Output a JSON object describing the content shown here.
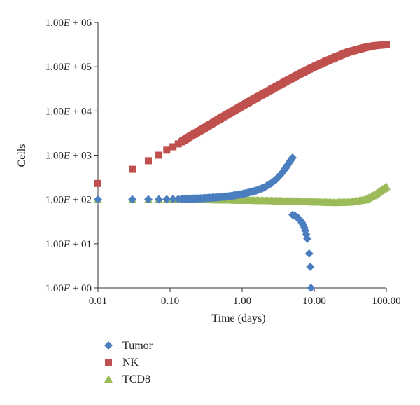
{
  "chart_data": {
    "type": "scatter",
    "title": "",
    "xlabel": "Time (days)",
    "ylabel": "Cells",
    "xscale": "log",
    "yscale": "log",
    "xlim": [
      0.01,
      100
    ],
    "ylim": [
      1,
      1000000
    ],
    "grid": false,
    "legend_position": "bottom-left",
    "x_tick_labels": [
      "0.01",
      "0.10",
      "1.00",
      "10.00",
      "100.00"
    ],
    "y_tick_labels": [
      "1.00E + 00",
      "1.00E + 01",
      "1.00E + 02",
      "1.00E + 03",
      "1.00E + 04",
      "1.00E + 05",
      "1.00E + 06"
    ],
    "series": [
      {
        "name": "Tumor",
        "marker": "diamond",
        "color": "#4a7ebf",
        "points": [
          {
            "x": 0.01,
            "y": 100
          },
          {
            "x": 0.03,
            "y": 100
          },
          {
            "x": 0.05,
            "y": 100
          },
          {
            "x": 0.07,
            "y": 100
          },
          {
            "x": 0.09,
            "y": 101
          },
          {
            "x": 0.11,
            "y": 102
          },
          {
            "x": 0.13,
            "y": 102
          },
          {
            "x": 0.15,
            "y": 103
          },
          {
            "x": 0.2,
            "y": 104
          },
          {
            "x": 0.3,
            "y": 107
          },
          {
            "x": 0.5,
            "y": 113
          },
          {
            "x": 0.7,
            "y": 120
          },
          {
            "x": 1.0,
            "y": 132
          },
          {
            "x": 1.5,
            "y": 155
          },
          {
            "x": 2.0,
            "y": 185
          },
          {
            "x": 2.5,
            "y": 230
          },
          {
            "x": 3.0,
            "y": 290
          },
          {
            "x": 3.5,
            "y": 380
          },
          {
            "x": 4.0,
            "y": 510
          },
          {
            "x": 4.5,
            "y": 680
          },
          {
            "x": 5.0,
            "y": 880
          },
          {
            "x": 5.0,
            "y": 45
          },
          {
            "x": 5.5,
            "y": 42
          },
          {
            "x": 6.0,
            "y": 38
          },
          {
            "x": 6.5,
            "y": 33
          },
          {
            "x": 7.0,
            "y": 27
          },
          {
            "x": 7.5,
            "y": 20
          },
          {
            "x": 8.0,
            "y": 13
          },
          {
            "x": 8.5,
            "y": 6
          },
          {
            "x": 8.8,
            "y": 3
          },
          {
            "x": 9.0,
            "y": 1
          }
        ]
      },
      {
        "name": "NK",
        "marker": "square",
        "color": "#c0504d",
        "points": [
          {
            "x": 0.01,
            "y": 230
          },
          {
            "x": 0.03,
            "y": 480
          },
          {
            "x": 0.05,
            "y": 750
          },
          {
            "x": 0.07,
            "y": 1000
          },
          {
            "x": 0.09,
            "y": 1300
          },
          {
            "x": 0.11,
            "y": 1550
          },
          {
            "x": 0.13,
            "y": 1800
          },
          {
            "x": 0.15,
            "y": 2100
          },
          {
            "x": 0.2,
            "y": 2800
          },
          {
            "x": 0.3,
            "y": 4100
          },
          {
            "x": 0.5,
            "y": 6800
          },
          {
            "x": 0.7,
            "y": 9300
          },
          {
            "x": 1.0,
            "y": 13000
          },
          {
            "x": 1.5,
            "y": 19000
          },
          {
            "x": 2.0,
            "y": 24500
          },
          {
            "x": 3.0,
            "y": 35500
          },
          {
            "x": 5.0,
            "y": 56000
          },
          {
            "x": 7.0,
            "y": 75000
          },
          {
            "x": 10.0,
            "y": 100000
          },
          {
            "x": 15.0,
            "y": 135000
          },
          {
            "x": 20.0,
            "y": 165000
          },
          {
            "x": 30.0,
            "y": 215000
          },
          {
            "x": 50.0,
            "y": 270000
          },
          {
            "x": 70.0,
            "y": 300000
          },
          {
            "x": 100.0,
            "y": 315000
          }
        ]
      },
      {
        "name": "TCD8",
        "marker": "triangle",
        "color": "#9bbb59",
        "points": [
          {
            "x": 0.01,
            "y": 100
          },
          {
            "x": 0.03,
            "y": 100
          },
          {
            "x": 0.05,
            "y": 100
          },
          {
            "x": 0.07,
            "y": 100
          },
          {
            "x": 0.09,
            "y": 100
          },
          {
            "x": 0.11,
            "y": 100
          },
          {
            "x": 0.13,
            "y": 100
          },
          {
            "x": 0.15,
            "y": 100
          },
          {
            "x": 0.2,
            "y": 100
          },
          {
            "x": 0.3,
            "y": 99
          },
          {
            "x": 0.5,
            "y": 98
          },
          {
            "x": 0.7,
            "y": 97
          },
          {
            "x": 1.0,
            "y": 96
          },
          {
            "x": 1.5,
            "y": 95
          },
          {
            "x": 2.0,
            "y": 94
          },
          {
            "x": 3.0,
            "y": 93
          },
          {
            "x": 5.0,
            "y": 91
          },
          {
            "x": 7.0,
            "y": 89
          },
          {
            "x": 10.0,
            "y": 88
          },
          {
            "x": 15.0,
            "y": 86
          },
          {
            "x": 20.0,
            "y": 85
          },
          {
            "x": 30.0,
            "y": 87
          },
          {
            "x": 50.0,
            "y": 98
          },
          {
            "x": 70.0,
            "y": 130
          },
          {
            "x": 100.0,
            "y": 195
          }
        ]
      }
    ]
  }
}
